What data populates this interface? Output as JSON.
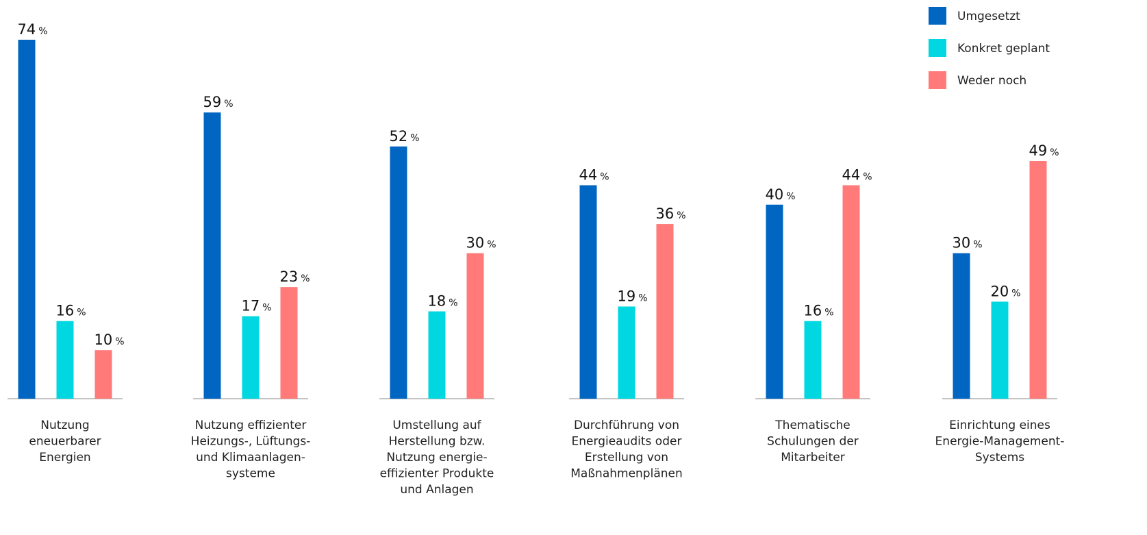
{
  "chart_data": {
    "type": "bar",
    "unit": "%",
    "ylim": [
      0,
      74
    ],
    "grid": false,
    "legend_position": "top-right",
    "categories": [
      [
        "Nutzung",
        "eneuerbarer",
        "Energien"
      ],
      [
        "Nutzung effizienter",
        "Heizungs-, Lüftungs-",
        "und Klimaanlagen-",
        "systeme"
      ],
      [
        "Umstellung auf",
        "Herstellung bzw.",
        "Nutzung energie-",
        "effizienter Produkte",
        "und Anlagen"
      ],
      [
        "Durchführung von",
        "Energieaudits oder",
        "Erstellung von",
        "Maßnahmenplänen"
      ],
      [
        "Thematische",
        "Schulungen der",
        "Mitarbeiter"
      ],
      [
        "Einrichtung eines",
        "Energie-Management-",
        "Systems"
      ]
    ],
    "series": [
      {
        "name": "Umgesetzt",
        "color": "#0066c2",
        "values": [
          74,
          59,
          52,
          44,
          40,
          30
        ]
      },
      {
        "name": "Konkret geplant",
        "color": "#00d7e1",
        "values": [
          16,
          17,
          18,
          19,
          16,
          20
        ]
      },
      {
        "name": "Weder noch",
        "color": "#ff7a78",
        "values": [
          10,
          23,
          30,
          36,
          44,
          49
        ]
      }
    ]
  }
}
